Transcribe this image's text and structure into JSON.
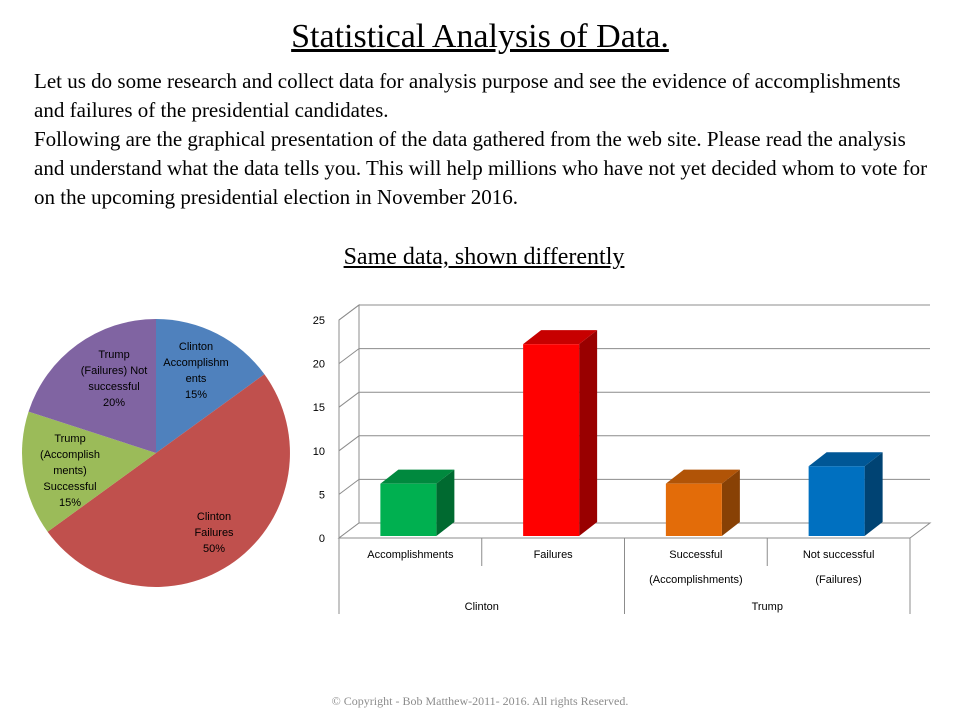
{
  "title": "Statistical Analysis of Data.",
  "intro": {
    "paragraph1": "Let us do some research and collect data for analysis purpose and see the evidence of accomplishments and failures of the presidential candidates.",
    "paragraph2": "Following  are the graphical presentation of the data gathered from the web site. Please read the analysis and understand what the data tells you. This will help millions who have not yet decided whom to vote for on the upcoming presidential election in November 2016."
  },
  "subtitle": "Same data, shown differently",
  "copyright": "© Copyright - Bob Matthew-2011-  2016.  All rights Reserved.",
  "chart_data": [
    {
      "type": "pie",
      "slices": [
        {
          "label_lines": [
            "Clinton",
            "Accomplishm",
            "ents",
            "15%"
          ],
          "value": 15,
          "color": "#4f81bd"
        },
        {
          "label_lines": [
            "Clinton",
            "Failures",
            "50%"
          ],
          "value": 50,
          "color": "#c0504d"
        },
        {
          "label_lines": [
            "Trump",
            "(Accomplish",
            "ments)",
            "Successful",
            "15%"
          ],
          "value": 15,
          "color": "#9bbb59"
        },
        {
          "label_lines": [
            "Trump",
            "(Failures) Not",
            "successful",
            "20%"
          ],
          "value": 20,
          "color": "#8064a2"
        }
      ]
    },
    {
      "type": "bar",
      "style": "3d",
      "grid": true,
      "ylim": [
        0,
        25
      ],
      "yticks": [
        0,
        5,
        10,
        15,
        20,
        25
      ],
      "categories": [
        {
          "label_lines": [
            "Accomplishments"
          ],
          "group": "Clinton",
          "value": 6,
          "color": "#00b050"
        },
        {
          "label_lines": [
            "Failures"
          ],
          "group": "Clinton",
          "value": 22,
          "color": "#ff0000"
        },
        {
          "label_lines": [
            "Successful",
            "(Accomplishments)"
          ],
          "group": "Trump",
          "value": 6,
          "color": "#e36c09"
        },
        {
          "label_lines": [
            "Not successful",
            "(Failures)"
          ],
          "group": "Trump",
          "value": 8,
          "color": "#0070c0"
        }
      ],
      "groups": [
        "Clinton",
        "Trump"
      ]
    }
  ]
}
